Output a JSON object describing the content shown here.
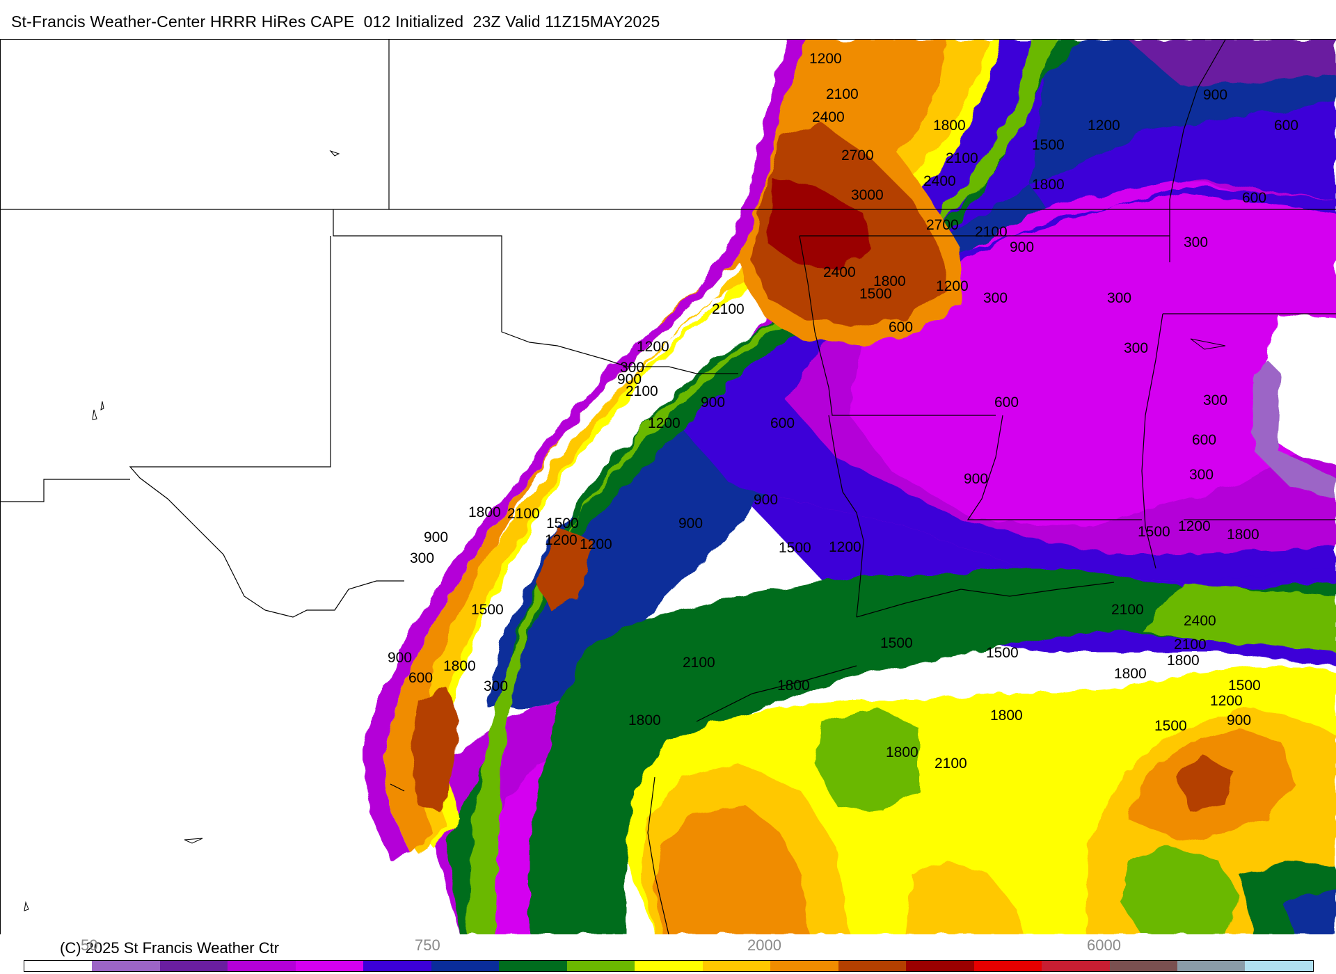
{
  "header": {
    "title": "St-Francis Weather-Center HRRR HiRes CAPE  012 Initialized  23Z Valid 11Z15MAY2025"
  },
  "footer": {
    "copyright": "(C) 2025 St Francis Weather Ctr",
    "colorbar_tick_labels": [
      "50",
      "750",
      "2000",
      "6000"
    ],
    "colorbar_colors": [
      "#ffffff",
      "#9c65c6",
      "#6a1ea0",
      "#b400d8",
      "#d400f0",
      "#3c00d8",
      "#0a2d9a",
      "#006d1e",
      "#6bb800",
      "#ffff00",
      "#ffc800",
      "#f08c00",
      "#b44000",
      "#9a0000",
      "#e60000",
      "#c81e32",
      "#7a5050",
      "#8a9ca8",
      "#b0e0f0"
    ]
  },
  "map": {
    "contour_labels": [
      "1200",
      "2100",
      "2400",
      "2700",
      "3000",
      "1800",
      "2100",
      "2400",
      "1500",
      "1800",
      "2700",
      "2100",
      "900",
      "1200",
      "900",
      "600",
      "600",
      "300",
      "300",
      "300",
      "2400",
      "1800",
      "1500",
      "1200",
      "2100",
      "600",
      "300",
      "300",
      "1200",
      "300",
      "900",
      "2100",
      "600",
      "900",
      "1200",
      "600",
      "600",
      "300",
      "900",
      "900",
      "900",
      "1800",
      "2100",
      "1500",
      "900",
      "1200",
      "1200",
      "1500",
      "1200",
      "1500",
      "1200",
      "1800",
      "300",
      "1500",
      "2100",
      "2400",
      "2100",
      "1800",
      "1800",
      "1500",
      "1200",
      "900",
      "1500",
      "900",
      "1800",
      "600",
      "300",
      "1500",
      "1500",
      "2100",
      "1800",
      "1800",
      "1800",
      "1800",
      "2100"
    ]
  }
}
